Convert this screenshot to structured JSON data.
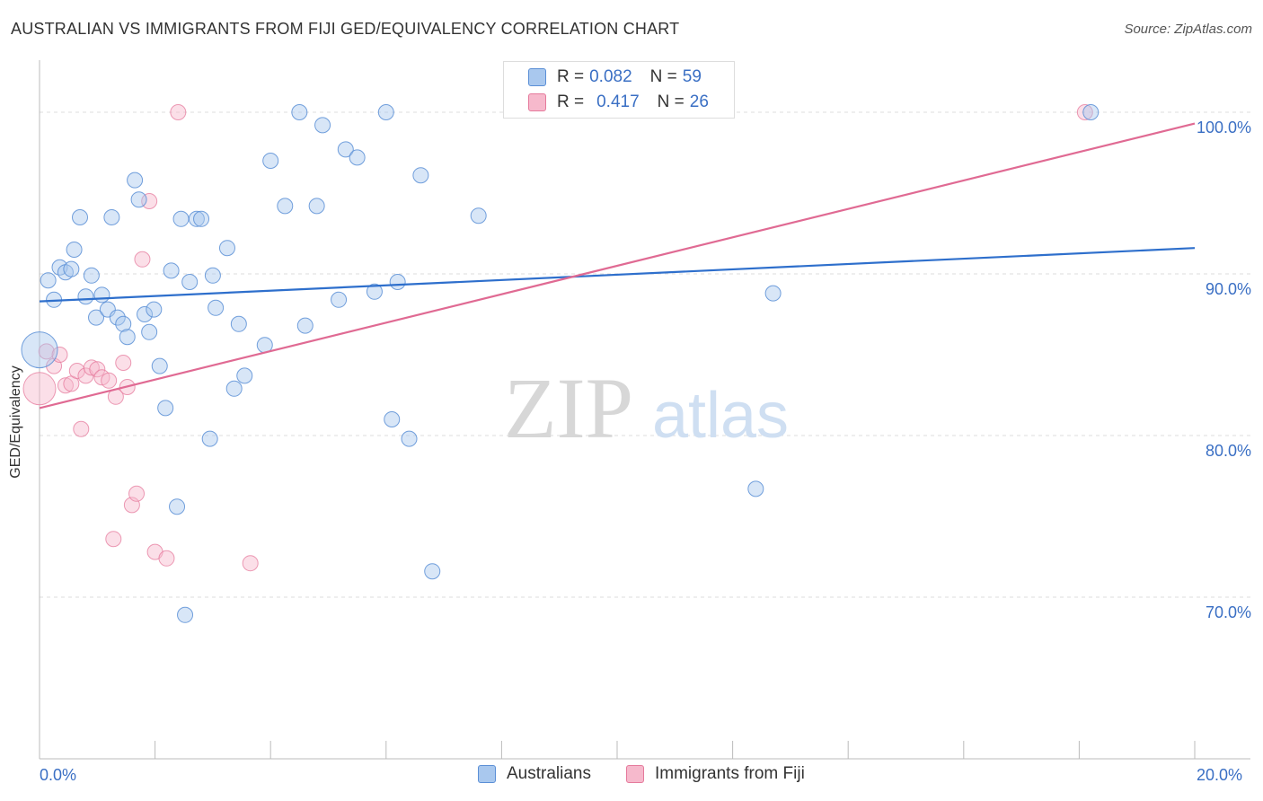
{
  "header": {
    "title": "AUSTRALIAN VS IMMIGRANTS FROM FIJI GED/EQUIVALENCY CORRELATION CHART",
    "source": "Source: ZipAtlas.com"
  },
  "watermark": {
    "zip": "ZIP",
    "atlas": "atlas"
  },
  "legend_top": {
    "rows": [
      {
        "r_label": "R = ",
        "r_value": "0.082",
        "n_label": "N = ",
        "n_value": "59"
      },
      {
        "r_label": "R = ",
        "r_value": "0.417",
        "n_label": "N = ",
        "n_value": "26"
      }
    ]
  },
  "legend_bottom": {
    "australians": "Australians",
    "fiji": "Immigrants from Fiji"
  },
  "colors": {
    "blue_fill": "#a9c8ee",
    "blue_stroke": "#5b8fd6",
    "blue_line": "#2e6fcc",
    "pink_fill": "#f6b9cc",
    "pink_stroke": "#e57a9c",
    "pink_line": "#e06a93",
    "axis_text": "#3a6fc4",
    "grid": "#dddddd"
  },
  "chart_data": {
    "type": "scatter",
    "title": "AUSTRALIAN VS IMMIGRANTS FROM FIJI GED/EQUIVALENCY CORRELATION CHART",
    "xlabel": "",
    "ylabel": "GED/Equivalency",
    "xlim": [
      0,
      20
    ],
    "ylim": [
      60,
      103.5
    ],
    "x_tick_labels": [
      "0.0%",
      "20.0%"
    ],
    "y_ticks": [
      70,
      80,
      90,
      100
    ],
    "y_tick_labels": [
      "70.0%",
      "80.0%",
      "90.0%",
      "100.0%"
    ],
    "series": [
      {
        "name": "Australians",
        "R": 0.082,
        "N": 59,
        "trend": {
          "x": [
            0,
            20
          ],
          "y": [
            88.3,
            91.6
          ]
        },
        "points": [
          {
            "x": 0.0,
            "y": 85.3,
            "big": true
          },
          {
            "x": 0.15,
            "y": 89.6
          },
          {
            "x": 0.25,
            "y": 88.4
          },
          {
            "x": 0.35,
            "y": 90.4
          },
          {
            "x": 0.45,
            "y": 90.1
          },
          {
            "x": 0.55,
            "y": 90.3
          },
          {
            "x": 0.6,
            "y": 91.5
          },
          {
            "x": 0.7,
            "y": 93.5
          },
          {
            "x": 0.8,
            "y": 88.6
          },
          {
            "x": 0.9,
            "y": 89.9
          },
          {
            "x": 0.98,
            "y": 87.3
          },
          {
            "x": 1.08,
            "y": 88.7
          },
          {
            "x": 1.18,
            "y": 87.8
          },
          {
            "x": 1.25,
            "y": 93.5
          },
          {
            "x": 1.35,
            "y": 87.3
          },
          {
            "x": 1.45,
            "y": 86.9
          },
          {
            "x": 1.52,
            "y": 86.1
          },
          {
            "x": 1.65,
            "y": 95.8
          },
          {
            "x": 1.72,
            "y": 94.6
          },
          {
            "x": 1.82,
            "y": 87.5
          },
          {
            "x": 1.9,
            "y": 86.4
          },
          {
            "x": 1.98,
            "y": 87.8
          },
          {
            "x": 2.08,
            "y": 84.3
          },
          {
            "x": 2.18,
            "y": 81.7
          },
          {
            "x": 2.28,
            "y": 90.2
          },
          {
            "x": 2.38,
            "y": 75.6
          },
          {
            "x": 2.45,
            "y": 93.4
          },
          {
            "x": 2.52,
            "y": 68.9
          },
          {
            "x": 2.6,
            "y": 89.5
          },
          {
            "x": 2.72,
            "y": 93.4
          },
          {
            "x": 2.8,
            "y": 93.4
          },
          {
            "x": 2.95,
            "y": 79.8
          },
          {
            "x": 3.0,
            "y": 89.9
          },
          {
            "x": 3.05,
            "y": 87.9
          },
          {
            "x": 3.25,
            "y": 91.6
          },
          {
            "x": 3.37,
            "y": 82.9
          },
          {
            "x": 3.45,
            "y": 86.9
          },
          {
            "x": 3.55,
            "y": 83.7
          },
          {
            "x": 3.9,
            "y": 85.6
          },
          {
            "x": 4.0,
            "y": 97.0
          },
          {
            "x": 4.25,
            "y": 94.2
          },
          {
            "x": 4.5,
            "y": 100.0
          },
          {
            "x": 4.6,
            "y": 86.8
          },
          {
            "x": 4.8,
            "y": 94.2
          },
          {
            "x": 4.9,
            "y": 99.2
          },
          {
            "x": 5.18,
            "y": 88.4
          },
          {
            "x": 5.3,
            "y": 97.7
          },
          {
            "x": 5.5,
            "y": 97.2
          },
          {
            "x": 5.8,
            "y": 88.9
          },
          {
            "x": 6.0,
            "y": 100.0
          },
          {
            "x": 6.1,
            "y": 81.0
          },
          {
            "x": 6.2,
            "y": 89.5
          },
          {
            "x": 6.4,
            "y": 79.8
          },
          {
            "x": 6.6,
            "y": 96.1
          },
          {
            "x": 6.8,
            "y": 71.6
          },
          {
            "x": 7.6,
            "y": 93.6
          },
          {
            "x": 12.4,
            "y": 76.7
          },
          {
            "x": 12.7,
            "y": 88.8
          },
          {
            "x": 18.2,
            "y": 100.0
          }
        ]
      },
      {
        "name": "Immigrants from Fiji",
        "R": 0.417,
        "N": 26,
        "trend": {
          "x": [
            0,
            20
          ],
          "y": [
            81.7,
            99.3
          ]
        },
        "points": [
          {
            "x": 0.0,
            "y": 82.9,
            "big": true
          },
          {
            "x": 0.12,
            "y": 85.2
          },
          {
            "x": 0.25,
            "y": 84.3
          },
          {
            "x": 0.35,
            "y": 85.0
          },
          {
            "x": 0.45,
            "y": 83.1
          },
          {
            "x": 0.55,
            "y": 83.2
          },
          {
            "x": 0.65,
            "y": 84.0
          },
          {
            "x": 0.72,
            "y": 80.4
          },
          {
            "x": 0.8,
            "y": 83.7
          },
          {
            "x": 0.9,
            "y": 84.2
          },
          {
            "x": 1.0,
            "y": 84.1
          },
          {
            "x": 1.08,
            "y": 83.6
          },
          {
            "x": 1.2,
            "y": 83.4
          },
          {
            "x": 1.28,
            "y": 73.6
          },
          {
            "x": 1.32,
            "y": 82.4
          },
          {
            "x": 1.45,
            "y": 84.5
          },
          {
            "x": 1.52,
            "y": 83.0
          },
          {
            "x": 1.6,
            "y": 75.7
          },
          {
            "x": 1.68,
            "y": 76.4
          },
          {
            "x": 1.78,
            "y": 90.9
          },
          {
            "x": 1.9,
            "y": 94.5
          },
          {
            "x": 2.0,
            "y": 72.8
          },
          {
            "x": 2.2,
            "y": 72.4
          },
          {
            "x": 2.4,
            "y": 100.0
          },
          {
            "x": 3.65,
            "y": 72.1
          },
          {
            "x": 18.1,
            "y": 100.0
          }
        ]
      }
    ]
  }
}
